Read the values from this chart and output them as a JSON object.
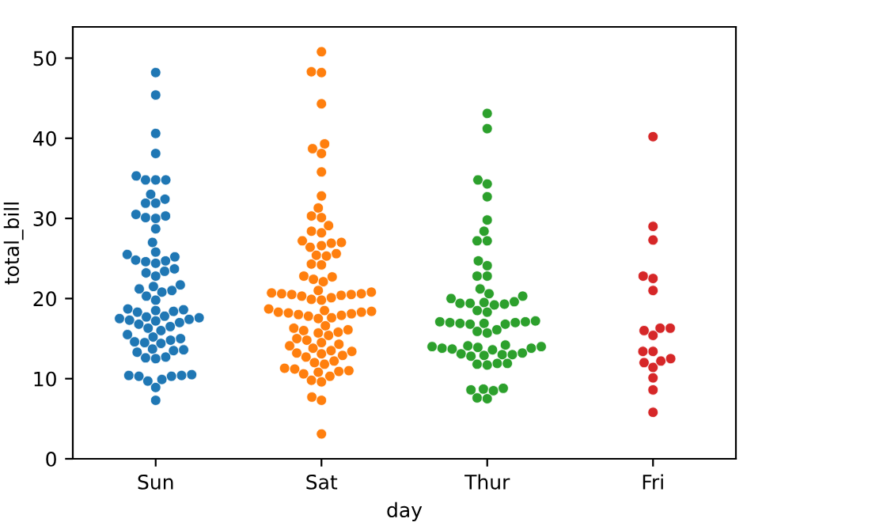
{
  "chart_data": {
    "type": "scatter",
    "xlabel": "day",
    "ylabel": "total_bill",
    "categories": [
      "Sun",
      "Sat",
      "Thur",
      "Fri"
    ],
    "ylim": [
      0,
      53.9
    ],
    "yticks": [
      0,
      10,
      20,
      30,
      40,
      50
    ],
    "grid": false,
    "legend": false,
    "marker": "circle",
    "series": [
      {
        "color": "#1f77b4",
        "x": [
          "Sun",
          "Sun",
          "Sun",
          "Sun",
          "Sun",
          "Sun",
          "Sun",
          "Sun",
          "Sun",
          "Sun",
          "Sun",
          "Sun",
          "Sun",
          "Sun",
          "Sun",
          "Sun",
          "Sun",
          "Sun",
          "Sun",
          "Sun",
          "Sun",
          "Sun",
          "Sun",
          "Sun",
          "Sun",
          "Sun",
          "Sun",
          "Sun",
          "Sun",
          "Sun",
          "Sun",
          "Sun",
          "Sun",
          "Sun",
          "Sun",
          "Sun",
          "Sun",
          "Sun",
          "Sun",
          "Sun",
          "Sun",
          "Sun",
          "Sun",
          "Sun",
          "Sun",
          "Sun",
          "Sun",
          "Sun",
          "Sun",
          "Sun",
          "Sun",
          "Sun",
          "Sun",
          "Sun",
          "Sun",
          "Sun",
          "Sun",
          "Sun",
          "Sun",
          "Sun",
          "Sun",
          "Sun",
          "Sun",
          "Sun",
          "Sun",
          "Sun",
          "Sun",
          "Sun",
          "Sun",
          "Sun",
          "Sun",
          "Sun",
          "Sun",
          "Sun",
          "Sun",
          "Sun"
        ],
        "values": [
          48.2,
          45.4,
          40.6,
          38.1,
          35.3,
          34.8,
          34.8,
          34.8,
          33.0,
          32.4,
          31.9,
          31.9,
          30.5,
          30.3,
          30.1,
          30.0,
          28.7,
          27.0,
          25.8,
          25.5,
          25.2,
          24.8,
          24.7,
          24.6,
          24.4,
          23.7,
          23.4,
          23.2,
          22.8,
          21.7,
          21.5,
          21.2,
          21.0,
          20.8,
          20.3,
          19.8,
          18.7,
          18.6,
          18.5,
          18.4,
          18.3,
          17.8,
          17.7,
          17.6,
          17.5,
          17.4,
          17.3,
          17.2,
          17.0,
          16.8,
          16.5,
          16.3,
          16.0,
          15.5,
          15.2,
          15.0,
          14.8,
          14.6,
          14.5,
          14.4,
          13.7,
          13.6,
          13.5,
          13.3,
          12.7,
          12.6,
          12.5,
          10.5,
          10.4,
          10.4,
          10.3,
          10.3,
          9.9,
          9.7,
          8.9,
          7.3
        ]
      },
      {
        "color": "#ff7f0e",
        "x": [
          "Sat",
          "Sat",
          "Sat",
          "Sat",
          "Sat",
          "Sat",
          "Sat",
          "Sat",
          "Sat",
          "Sat",
          "Sat",
          "Sat",
          "Sat",
          "Sat",
          "Sat",
          "Sat",
          "Sat",
          "Sat",
          "Sat",
          "Sat",
          "Sat",
          "Sat",
          "Sat",
          "Sat",
          "Sat",
          "Sat",
          "Sat",
          "Sat",
          "Sat",
          "Sat",
          "Sat",
          "Sat",
          "Sat",
          "Sat",
          "Sat",
          "Sat",
          "Sat",
          "Sat",
          "Sat",
          "Sat",
          "Sat",
          "Sat",
          "Sat",
          "Sat",
          "Sat",
          "Sat",
          "Sat",
          "Sat",
          "Sat",
          "Sat",
          "Sat",
          "Sat",
          "Sat",
          "Sat",
          "Sat",
          "Sat",
          "Sat",
          "Sat",
          "Sat",
          "Sat",
          "Sat",
          "Sat",
          "Sat",
          "Sat",
          "Sat",
          "Sat",
          "Sat",
          "Sat",
          "Sat",
          "Sat",
          "Sat",
          "Sat",
          "Sat",
          "Sat",
          "Sat",
          "Sat",
          "Sat",
          "Sat",
          "Sat",
          "Sat",
          "Sat",
          "Sat",
          "Sat",
          "Sat",
          "Sat",
          "Sat",
          "Sat"
        ],
        "values": [
          50.8,
          48.3,
          48.2,
          44.3,
          39.3,
          38.7,
          38.1,
          35.8,
          32.8,
          31.3,
          30.3,
          30.1,
          29.1,
          28.4,
          28.2,
          27.2,
          27.0,
          26.9,
          26.6,
          26.4,
          25.6,
          25.4,
          25.3,
          24.3,
          24.2,
          22.8,
          22.7,
          22.4,
          22.1,
          21.0,
          20.8,
          20.7,
          20.6,
          20.6,
          20.5,
          20.5,
          20.4,
          20.3,
          20.1,
          19.9,
          19.8,
          18.7,
          18.5,
          18.4,
          18.3,
          18.3,
          18.2,
          18.1,
          18.0,
          17.9,
          17.8,
          17.6,
          17.5,
          16.6,
          16.3,
          16.1,
          16.0,
          15.8,
          15.7,
          15.4,
          15.0,
          14.8,
          14.5,
          14.3,
          14.1,
          13.8,
          13.5,
          13.4,
          13.2,
          13.1,
          12.9,
          12.7,
          12.2,
          12.0,
          11.8,
          11.3,
          11.2,
          11.0,
          10.9,
          10.8,
          10.6,
          10.3,
          9.8,
          9.6,
          7.7,
          7.3,
          3.1
        ]
      },
      {
        "color": "#2ca02c",
        "x": [
          "Thur",
          "Thur",
          "Thur",
          "Thur",
          "Thur",
          "Thur",
          "Thur",
          "Thur",
          "Thur",
          "Thur",
          "Thur",
          "Thur",
          "Thur",
          "Thur",
          "Thur",
          "Thur",
          "Thur",
          "Thur",
          "Thur",
          "Thur",
          "Thur",
          "Thur",
          "Thur",
          "Thur",
          "Thur",
          "Thur",
          "Thur",
          "Thur",
          "Thur",
          "Thur",
          "Thur",
          "Thur",
          "Thur",
          "Thur",
          "Thur",
          "Thur",
          "Thur",
          "Thur",
          "Thur",
          "Thur",
          "Thur",
          "Thur",
          "Thur",
          "Thur",
          "Thur",
          "Thur",
          "Thur",
          "Thur",
          "Thur",
          "Thur",
          "Thur",
          "Thur",
          "Thur",
          "Thur",
          "Thur",
          "Thur",
          "Thur",
          "Thur",
          "Thur",
          "Thur",
          "Thur",
          "Thur"
        ],
        "values": [
          43.1,
          41.2,
          34.8,
          34.3,
          32.7,
          29.8,
          28.4,
          27.2,
          27.2,
          24.7,
          24.1,
          22.8,
          22.8,
          21.2,
          20.6,
          20.3,
          20.0,
          19.6,
          19.5,
          19.4,
          19.4,
          19.3,
          19.2,
          18.5,
          18.3,
          17.2,
          17.1,
          17.1,
          17.0,
          17.0,
          16.9,
          16.9,
          16.8,
          16.8,
          16.1,
          15.9,
          15.7,
          14.2,
          14.1,
          14.0,
          14.0,
          13.9,
          13.8,
          13.8,
          13.7,
          13.6,
          13.2,
          13.1,
          13.0,
          13.0,
          12.9,
          12.8,
          11.9,
          11.9,
          11.8,
          11.7,
          8.8,
          8.7,
          8.6,
          8.5,
          7.6,
          7.5
        ]
      },
      {
        "color": "#d62728",
        "x": [
          "Fri",
          "Fri",
          "Fri",
          "Fri",
          "Fri",
          "Fri",
          "Fri",
          "Fri",
          "Fri",
          "Fri",
          "Fri",
          "Fri",
          "Fri",
          "Fri",
          "Fri",
          "Fri",
          "Fri",
          "Fri",
          "Fri"
        ],
        "values": [
          29.0,
          22.5,
          5.8,
          16.3,
          22.8,
          40.2,
          27.3,
          12.0,
          21.0,
          12.5,
          11.4,
          15.4,
          12.2,
          13.4,
          8.6,
          16.0,
          13.4,
          16.3,
          10.1
        ]
      }
    ]
  }
}
